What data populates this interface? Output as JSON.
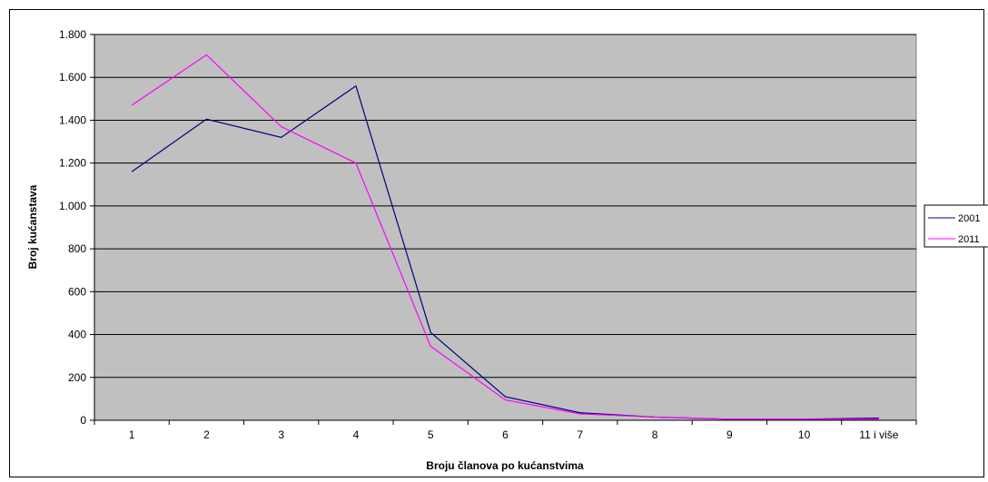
{
  "chart_data": {
    "type": "line",
    "categories": [
      "1",
      "2",
      "3",
      "4",
      "5",
      "6",
      "7",
      "8",
      "9",
      "10",
      "11 i više"
    ],
    "series": [
      {
        "name": "2001",
        "color": "#000080",
        "values": [
          1160,
          1405,
          1320,
          1560,
          410,
          110,
          35,
          15,
          5,
          5,
          10
        ]
      },
      {
        "name": "2011",
        "color": "#ff00ff",
        "values": [
          1470,
          1705,
          1370,
          1200,
          345,
          95,
          30,
          15,
          5,
          5,
          5
        ]
      }
    ],
    "xlabel": "Broju članova po kućanstvima",
    "ylabel": "Broj kućanstava",
    "ylim": [
      0,
      1800
    ],
    "yticks": [
      0,
      200,
      400,
      600,
      800,
      1000,
      1200,
      1400,
      1600,
      1800
    ],
    "ytick_labels": [
      "0",
      "200",
      "400",
      "600",
      "800",
      "1.000",
      "1.200",
      "1.400",
      "1.600",
      "1.800"
    ],
    "plot_background": "#c0c0c0",
    "grid": true,
    "legend_position": "right"
  }
}
